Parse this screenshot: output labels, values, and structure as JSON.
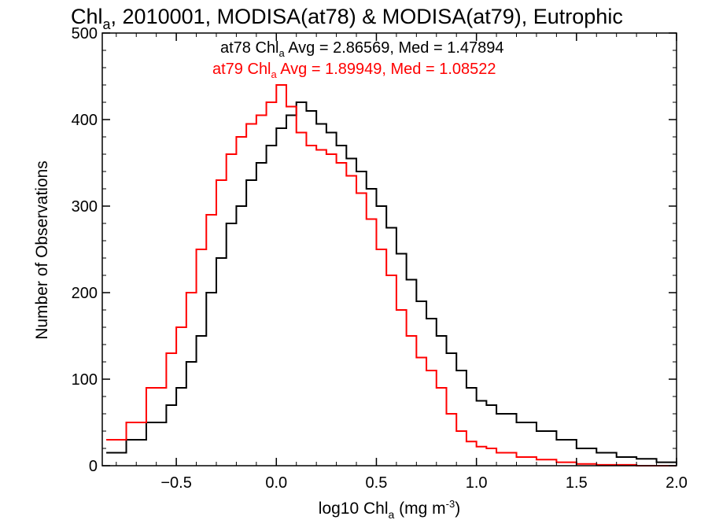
{
  "chart_data": {
    "type": "line",
    "title": {
      "prefix": "Chl",
      "sub": "a",
      "rest": ", 2010001, MODISA(at78) & MODISA(at79), Eutrophic"
    },
    "xlabel": {
      "prefix": "log10 Chl",
      "sub": "a",
      "units": " (mg m",
      "sup": "-3",
      "close": ")"
    },
    "ylabel": "Number of Observations",
    "xlim": [
      -0.87,
      2.0
    ],
    "ylim": [
      0,
      500
    ],
    "x_ticks": [
      "−0.5",
      "0.0",
      "0.5",
      "1.0",
      "1.5",
      "2.0"
    ],
    "y_ticks": [
      "0",
      "100",
      "200",
      "300",
      "400",
      "500"
    ],
    "annotations": [
      {
        "label": "at78",
        "prefix": " Chl",
        "sub": "a",
        "text": " Avg = 2.86569, Med = 1.47894",
        "color": "#000000"
      },
      {
        "label": "at79",
        "prefix": " Chl",
        "sub": "a",
        "text": " Avg = 1.89949, Med = 1.08522",
        "color": "#ff0000"
      }
    ],
    "step_style": "histogram-step",
    "series": [
      {
        "name": "at78",
        "color": "#000000",
        "x": [
          -0.85,
          -0.75,
          -0.65,
          -0.55,
          -0.5,
          -0.45,
          -0.4,
          -0.35,
          -0.3,
          -0.25,
          -0.2,
          -0.15,
          -0.1,
          -0.05,
          0.0,
          0.05,
          0.1,
          0.15,
          0.2,
          0.25,
          0.3,
          0.35,
          0.4,
          0.45,
          0.5,
          0.55,
          0.6,
          0.65,
          0.7,
          0.75,
          0.8,
          0.85,
          0.9,
          0.95,
          1.0,
          1.05,
          1.1,
          1.2,
          1.3,
          1.4,
          1.5,
          1.6,
          1.7,
          1.8,
          1.9,
          2.0
        ],
        "y": [
          15,
          30,
          50,
          70,
          90,
          120,
          150,
          200,
          240,
          280,
          300,
          330,
          350,
          370,
          390,
          405,
          420,
          410,
          395,
          385,
          370,
          355,
          340,
          320,
          300,
          275,
          245,
          215,
          190,
          170,
          150,
          130,
          110,
          90,
          75,
          70,
          60,
          50,
          40,
          30,
          20,
          15,
          10,
          8,
          4,
          2
        ]
      },
      {
        "name": "at79",
        "color": "#ff0000",
        "x": [
          -0.85,
          -0.75,
          -0.65,
          -0.55,
          -0.5,
          -0.45,
          -0.4,
          -0.35,
          -0.3,
          -0.25,
          -0.2,
          -0.15,
          -0.1,
          -0.05,
          0.0,
          0.05,
          0.1,
          0.15,
          0.2,
          0.25,
          0.3,
          0.35,
          0.4,
          0.45,
          0.5,
          0.55,
          0.6,
          0.65,
          0.7,
          0.75,
          0.8,
          0.85,
          0.9,
          0.95,
          1.0,
          1.05,
          1.1,
          1.2,
          1.3,
          1.4,
          1.5,
          1.6,
          1.7,
          1.8,
          1.9,
          2.0
        ],
        "y": [
          30,
          50,
          90,
          130,
          160,
          200,
          250,
          290,
          330,
          360,
          380,
          395,
          405,
          420,
          440,
          415,
          385,
          370,
          365,
          360,
          350,
          335,
          315,
          285,
          250,
          220,
          180,
          150,
          125,
          110,
          90,
          60,
          40,
          28,
          22,
          20,
          15,
          10,
          7,
          4,
          2,
          1,
          1,
          0,
          0,
          0
        ]
      }
    ]
  }
}
